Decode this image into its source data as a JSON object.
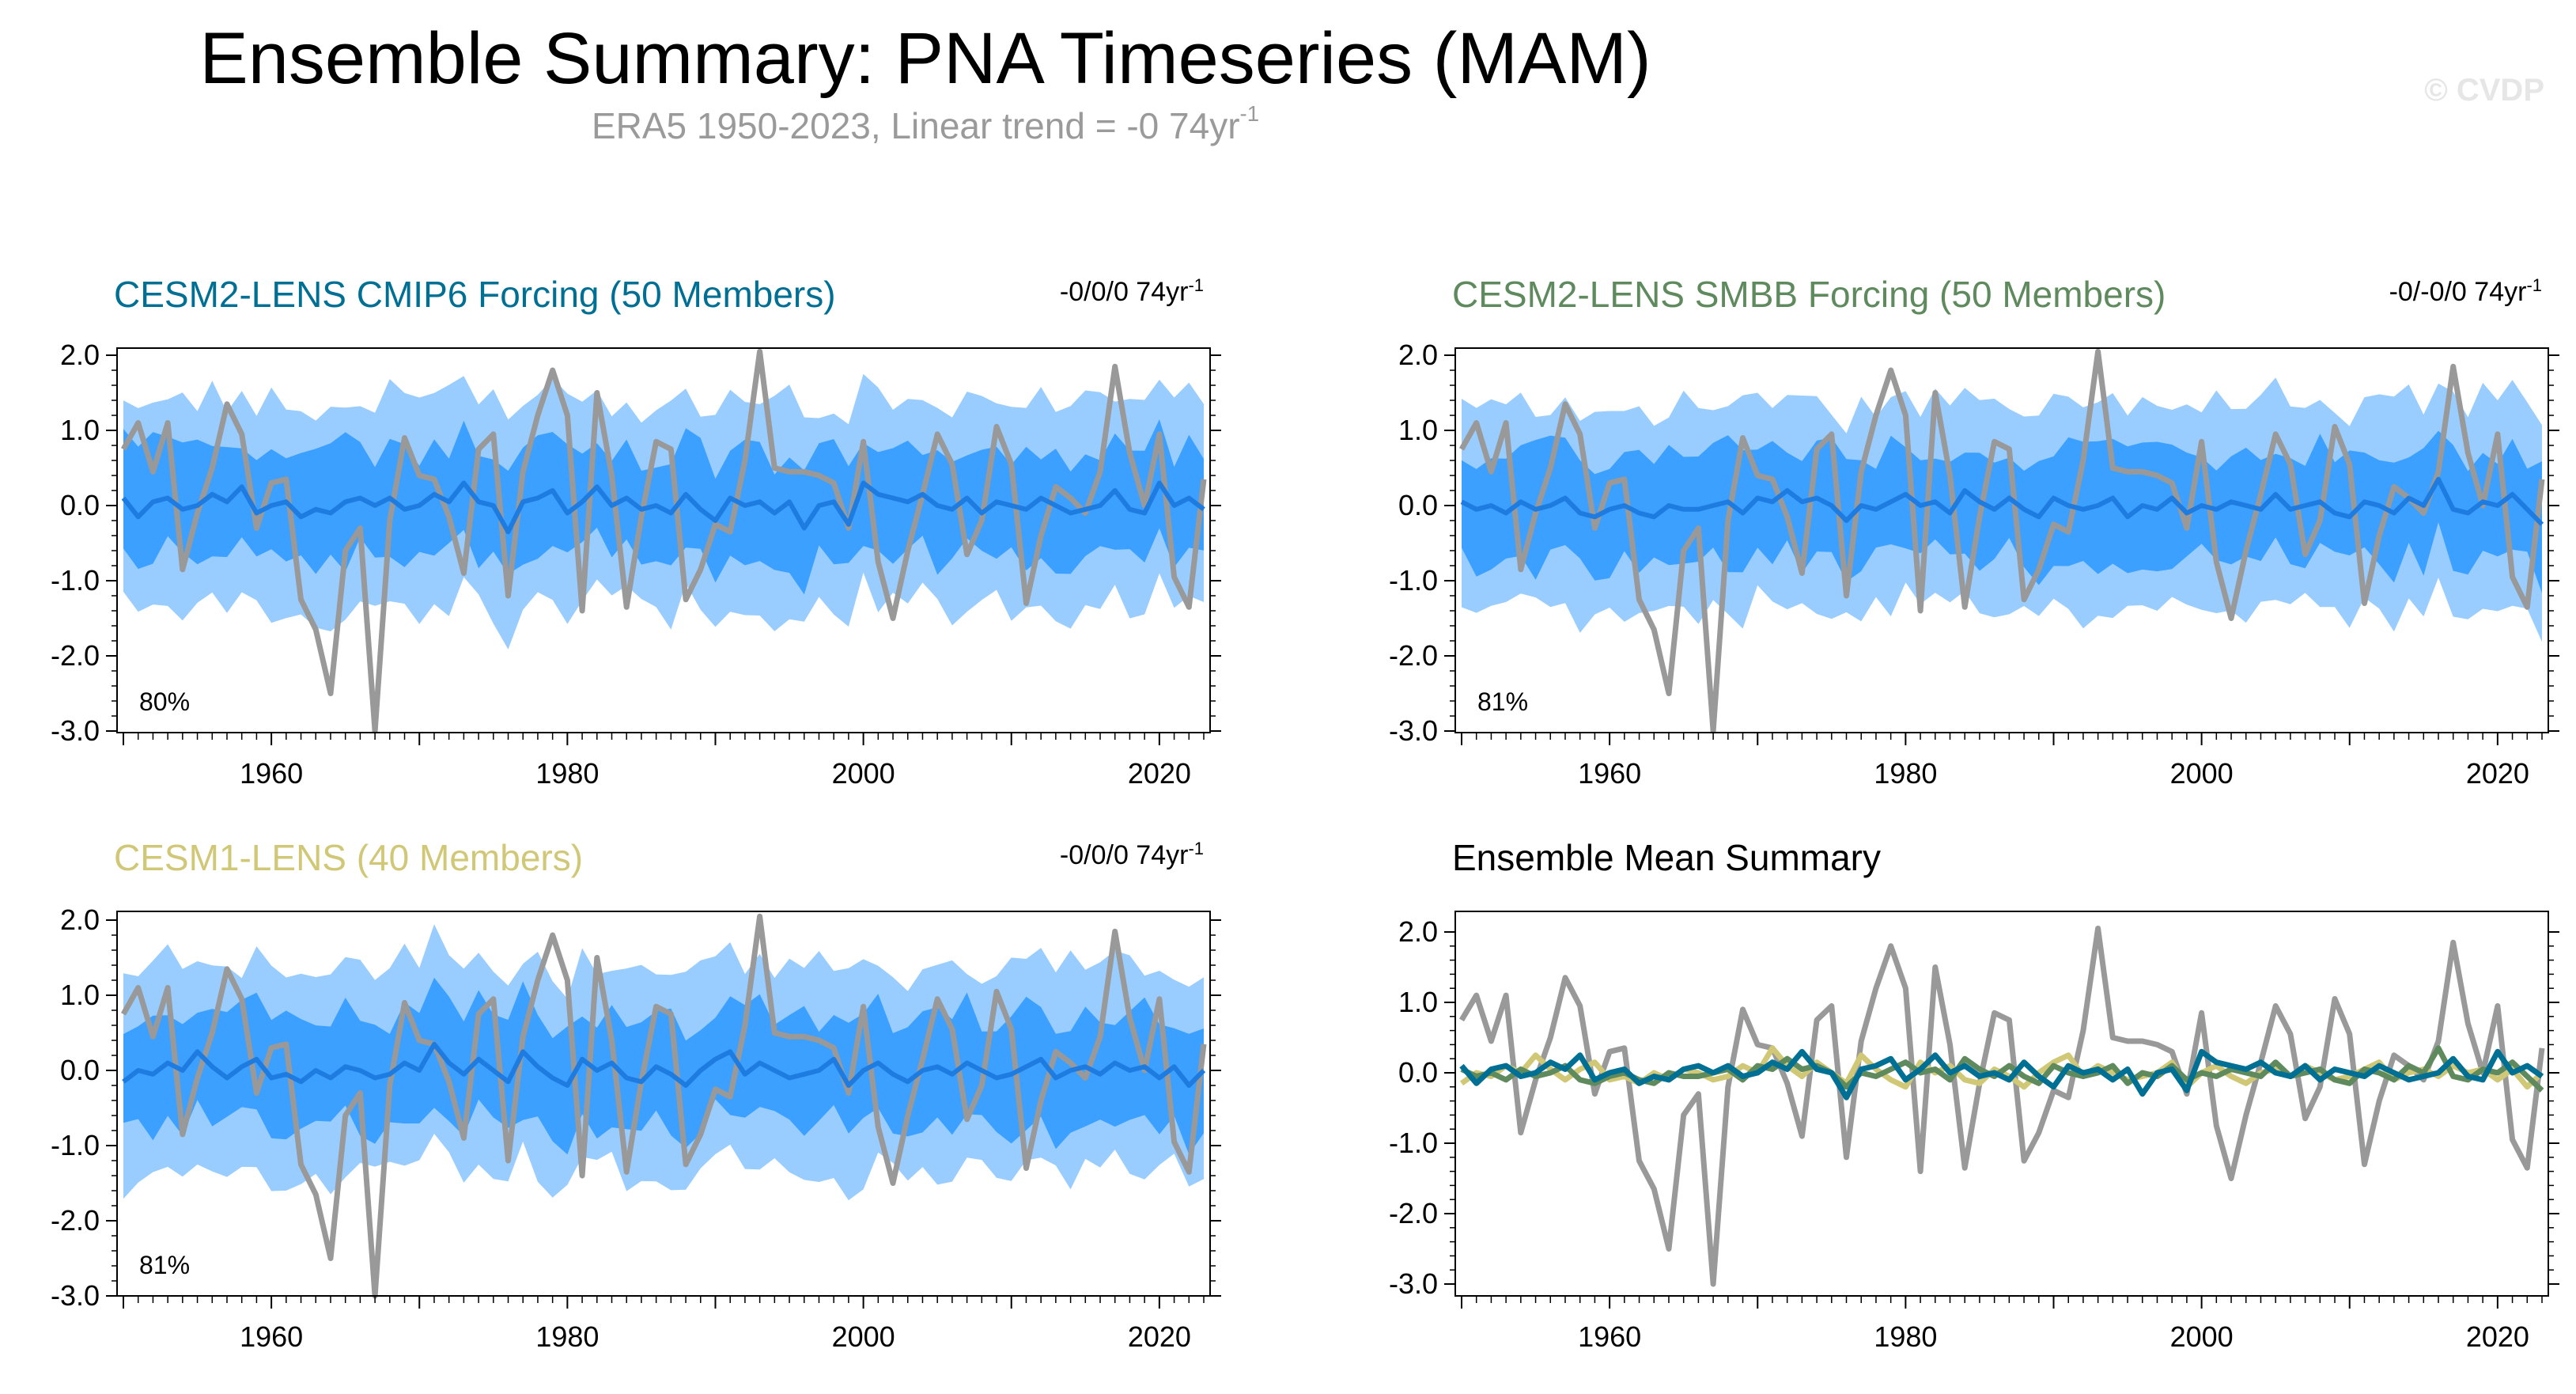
{
  "title": "Ensemble Summary: PNA Timeseries (MAM)",
  "subtitle_text": "ERA5 1950-2023, Linear trend = -0 74yr",
  "subtitle_sup": "-1",
  "credit": "© CVDP",
  "colors": {
    "obs": "#999999",
    "band_outer": "#99ccff",
    "band_inner": "#3ba0ff",
    "ens_mean": "#1e7be0",
    "cmip6": "#006f94",
    "smbb": "#5e8a5e",
    "cesm1": "#d0c877"
  },
  "chart_data": [
    {
      "type": "line",
      "title": "CESM2-LENS CMIP6 Forcing (50 Members)",
      "title_color": "#006f94",
      "trend_text": "-0/0/0 74yr",
      "trend_sup": "-1",
      "percent_label": "80%",
      "band_width": 1,
      "band_seed": 3,
      "xlim": [
        1950,
        2023
      ],
      "ylim": [
        -3.0,
        2.0
      ],
      "yticks": [
        "2.0",
        "1.0",
        "0.0",
        "-1.0",
        "-2.0",
        "-3.0"
      ],
      "xticks": [
        "1960",
        "1980",
        "2000",
        "2020"
      ],
      "series": [
        {
          "name": "ERA5",
          "color": "#999999",
          "width": 7,
          "values": [
            0.75,
            1.1,
            0.45,
            1.1,
            -0.85,
            -0.1,
            0.5,
            1.35,
            0.95,
            -0.3,
            0.3,
            0.35,
            -1.25,
            -1.65,
            -2.5,
            -0.6,
            -0.3,
            -3.0,
            -0.2,
            0.9,
            0.4,
            0.35,
            -0.15,
            -0.9,
            0.75,
            0.95,
            -1.2,
            0.45,
            1.2,
            1.8,
            1.2,
            -1.4,
            1.5,
            0.4,
            -1.35,
            -0.15,
            0.85,
            0.75,
            -1.25,
            -0.85,
            -0.25,
            -0.35,
            0.6,
            2.05,
            0.5,
            0.45,
            0.45,
            0.4,
            0.3,
            -0.3,
            0.85,
            -0.75,
            -1.5,
            -0.6,
            0.15,
            0.95,
            0.55,
            -0.65,
            -0.2,
            1.05,
            0.55,
            -1.3,
            -0.4,
            0.25,
            0.1,
            -0.1,
            0.45,
            1.85,
            0.7,
            0.0,
            0.95,
            -0.95,
            -1.35,
            0.35
          ]
        },
        {
          "name": "Ensemble mean",
          "color": "#1e7be0",
          "width": 6,
          "values": [
            0.1,
            -0.15,
            0.05,
            0.1,
            -0.05,
            0.0,
            0.15,
            0.05,
            0.25,
            -0.1,
            0.0,
            0.05,
            -0.15,
            -0.05,
            -0.1,
            0.05,
            0.1,
            0.0,
            0.1,
            -0.05,
            0.0,
            0.15,
            0.05,
            0.3,
            0.05,
            0.0,
            -0.35,
            0.05,
            0.1,
            0.2,
            -0.1,
            0.05,
            0.25,
            0.0,
            0.1,
            -0.05,
            0.0,
            -0.1,
            0.15,
            -0.05,
            -0.2,
            0.1,
            0.0,
            0.05,
            -0.1,
            0.05,
            -0.3,
            0.0,
            0.05,
            -0.25,
            0.3,
            0.15,
            0.1,
            0.05,
            0.15,
            0.0,
            -0.05,
            0.1,
            -0.1,
            0.05,
            0.0,
            -0.05,
            0.1,
            0.0,
            -0.1,
            -0.05,
            0.0,
            0.2,
            -0.05,
            -0.1,
            0.3,
            0.0,
            0.1,
            -0.05
          ]
        }
      ]
    },
    {
      "type": "line",
      "title": "CESM2-LENS SMBB Forcing (50 Members)",
      "title_color": "#5e8a5e",
      "trend_text": "-0/-0/0 74yr",
      "trend_sup": "-1",
      "percent_label": "81%",
      "band_width": 1,
      "band_seed": 7,
      "xlim": [
        1950,
        2023
      ],
      "ylim": [
        -3.0,
        2.0
      ],
      "yticks": [
        "2.0",
        "1.0",
        "0.0",
        "-1.0",
        "-2.0",
        "-3.0"
      ],
      "xticks": [
        "1960",
        "1980",
        "2000",
        "2020"
      ],
      "series": [
        {
          "name": "ERA5",
          "color": "#999999",
          "width": 7,
          "values": [
            0.75,
            1.1,
            0.45,
            1.1,
            -0.85,
            -0.1,
            0.5,
            1.35,
            0.95,
            -0.3,
            0.3,
            0.35,
            -1.25,
            -1.65,
            -2.5,
            -0.6,
            -0.3,
            -3.0,
            -0.2,
            0.9,
            0.4,
            0.35,
            -0.15,
            -0.9,
            0.75,
            0.95,
            -1.2,
            0.45,
            1.2,
            1.8,
            1.2,
            -1.4,
            1.5,
            0.4,
            -1.35,
            -0.15,
            0.85,
            0.75,
            -1.25,
            -0.85,
            -0.25,
            -0.35,
            0.6,
            2.05,
            0.5,
            0.45,
            0.45,
            0.4,
            0.3,
            -0.3,
            0.85,
            -0.75,
            -1.5,
            -0.6,
            0.15,
            0.95,
            0.55,
            -0.65,
            -0.2,
            1.05,
            0.55,
            -1.3,
            -0.4,
            0.25,
            0.1,
            -0.1,
            0.45,
            1.85,
            0.7,
            0.0,
            0.95,
            -0.95,
            -1.35,
            0.35
          ]
        },
        {
          "name": "Ensemble mean",
          "color": "#1e7be0",
          "width": 6,
          "values": [
            0.05,
            -0.05,
            0.0,
            -0.1,
            0.05,
            -0.05,
            0.0,
            0.1,
            -0.1,
            -0.15,
            -0.05,
            0.0,
            -0.1,
            -0.15,
            0.0,
            -0.05,
            -0.05,
            0.0,
            0.05,
            -0.1,
            0.1,
            0.05,
            0.2,
            0.05,
            0.1,
            0.0,
            -0.2,
            0.0,
            -0.05,
            0.05,
            0.15,
            0.0,
            0.05,
            -0.1,
            0.2,
            0.05,
            -0.05,
            0.1,
            -0.05,
            -0.15,
            0.1,
            0.0,
            -0.05,
            0.0,
            0.1,
            -0.15,
            0.0,
            -0.05,
            0.1,
            -0.1,
            0.0,
            -0.05,
            0.05,
            0.0,
            -0.05,
            0.15,
            -0.05,
            0.0,
            0.05,
            -0.1,
            -0.15,
            0.05,
            0.0,
            -0.1,
            0.1,
            0.0,
            0.35,
            -0.05,
            -0.1,
            0.05,
            0.0,
            0.15,
            -0.05,
            -0.25
          ]
        }
      ]
    },
    {
      "type": "line",
      "title": "CESM1-LENS (40 Members)",
      "title_color": "#d0c877",
      "trend_text": "-0/0/0 74yr",
      "trend_sup": "-1",
      "percent_label": "81%",
      "band_width": 1,
      "band_seed": 11,
      "xlim": [
        1950,
        2023
      ],
      "ylim": [
        -3.0,
        2.0
      ],
      "yticks": [
        "2.0",
        "1.0",
        "0.0",
        "-1.0",
        "-2.0",
        "-3.0"
      ],
      "xticks": [
        "1960",
        "1980",
        "2000",
        "2020"
      ],
      "series": [
        {
          "name": "ERA5",
          "color": "#999999",
          "width": 7,
          "values": [
            0.75,
            1.1,
            0.45,
            1.1,
            -0.85,
            -0.1,
            0.5,
            1.35,
            0.95,
            -0.3,
            0.3,
            0.35,
            -1.25,
            -1.65,
            -2.5,
            -0.6,
            -0.3,
            -3.0,
            -0.2,
            0.9,
            0.4,
            0.35,
            -0.15,
            -0.9,
            0.75,
            0.95,
            -1.2,
            0.45,
            1.2,
            1.8,
            1.2,
            -1.4,
            1.5,
            0.4,
            -1.35,
            -0.15,
            0.85,
            0.75,
            -1.25,
            -0.85,
            -0.25,
            -0.35,
            0.6,
            2.05,
            0.5,
            0.45,
            0.45,
            0.4,
            0.3,
            -0.3,
            0.85,
            -0.75,
            -1.5,
            -0.6,
            0.15,
            0.95,
            0.55,
            -0.65,
            -0.2,
            1.05,
            0.55,
            -1.3,
            -0.4,
            0.25,
            0.1,
            -0.1,
            0.45,
            1.85,
            0.7,
            0.0,
            0.95,
            -0.95,
            -1.35,
            0.35
          ]
        },
        {
          "name": "Ensemble mean",
          "color": "#1e7be0",
          "width": 6,
          "values": [
            -0.15,
            0.0,
            -0.05,
            0.1,
            0.0,
            0.25,
            0.05,
            -0.1,
            0.05,
            0.15,
            -0.1,
            -0.05,
            -0.15,
            0.0,
            -0.1,
            0.05,
            0.0,
            -0.1,
            -0.05,
            0.1,
            0.0,
            0.35,
            0.1,
            -0.05,
            0.15,
            0.0,
            -0.15,
            0.25,
            0.05,
            -0.1,
            -0.2,
            0.15,
            0.0,
            0.1,
            -0.1,
            -0.15,
            0.05,
            -0.05,
            -0.2,
            0.0,
            0.15,
            0.25,
            -0.05,
            0.1,
            0.0,
            -0.1,
            -0.05,
            0.0,
            0.15,
            -0.2,
            0.0,
            0.1,
            -0.05,
            -0.15,
            0.0,
            0.05,
            -0.05,
            0.1,
            0.0,
            -0.1,
            -0.05,
            0.05,
            0.15,
            -0.1,
            0.0,
            0.05,
            -0.05,
            0.1,
            0.0,
            0.05,
            -0.1,
            0.05,
            -0.2,
            0.0
          ]
        }
      ]
    },
    {
      "type": "line",
      "title": "Ensemble Mean Summary",
      "title_color": "#000000",
      "trend_text": "",
      "trend_sup": "",
      "percent_label": "",
      "band_width": 0,
      "xlim": [
        1950,
        2023
      ],
      "ylim": [
        -3.0,
        2.0
      ],
      "yticks": [
        "2.0",
        "1.0",
        "0.0",
        "-1.0",
        "-2.0",
        "-3.0"
      ],
      "xticks": [
        "1960",
        "1980",
        "2000",
        "2020"
      ],
      "series": [
        {
          "name": "ERA5",
          "color": "#999999",
          "width": 7,
          "values": [
            0.75,
            1.1,
            0.45,
            1.1,
            -0.85,
            -0.1,
            0.5,
            1.35,
            0.95,
            -0.3,
            0.3,
            0.35,
            -1.25,
            -1.65,
            -2.5,
            -0.6,
            -0.3,
            -3.0,
            -0.2,
            0.9,
            0.4,
            0.35,
            -0.15,
            -0.9,
            0.75,
            0.95,
            -1.2,
            0.45,
            1.2,
            1.8,
            1.2,
            -1.4,
            1.5,
            0.4,
            -1.35,
            -0.15,
            0.85,
            0.75,
            -1.25,
            -0.85,
            -0.25,
            -0.35,
            0.6,
            2.05,
            0.5,
            0.45,
            0.45,
            0.4,
            0.3,
            -0.3,
            0.85,
            -0.75,
            -1.5,
            -0.6,
            0.15,
            0.95,
            0.55,
            -0.65,
            -0.2,
            1.05,
            0.55,
            -1.3,
            -0.4,
            0.25,
            0.1,
            -0.1,
            0.45,
            1.85,
            0.7,
            0.0,
            0.95,
            -0.95,
            -1.35,
            0.35
          ]
        },
        {
          "name": "CESM1-LENS",
          "color": "#d0c877",
          "width": 7,
          "values": [
            -0.15,
            0.0,
            -0.05,
            0.1,
            0.0,
            0.25,
            0.05,
            -0.1,
            0.05,
            0.15,
            -0.1,
            -0.05,
            -0.15,
            0.0,
            -0.1,
            0.05,
            0.0,
            -0.1,
            -0.05,
            0.1,
            0.0,
            0.35,
            0.1,
            -0.05,
            0.15,
            0.0,
            -0.15,
            0.25,
            0.05,
            -0.1,
            -0.2,
            0.15,
            0.0,
            0.1,
            -0.1,
            -0.15,
            0.05,
            -0.05,
            -0.2,
            0.0,
            0.15,
            0.25,
            -0.05,
            0.1,
            0.0,
            -0.1,
            -0.05,
            0.0,
            0.15,
            -0.2,
            0.0,
            0.1,
            -0.05,
            -0.15,
            0.0,
            0.05,
            -0.05,
            0.1,
            0.0,
            -0.1,
            -0.05,
            0.05,
            0.15,
            -0.1,
            0.0,
            0.05,
            -0.05,
            0.1,
            0.0,
            0.05,
            -0.1,
            0.05,
            -0.2,
            0.0
          ]
        },
        {
          "name": "CESM2-LENS SMBB",
          "color": "#5e8a5e",
          "width": 7,
          "values": [
            0.05,
            -0.05,
            0.0,
            -0.1,
            0.05,
            -0.05,
            0.0,
            0.1,
            -0.1,
            -0.15,
            -0.05,
            0.0,
            -0.1,
            -0.15,
            0.0,
            -0.05,
            -0.05,
            0.0,
            0.05,
            -0.1,
            0.1,
            0.05,
            0.2,
            0.05,
            0.1,
            0.0,
            -0.2,
            0.0,
            -0.05,
            0.05,
            0.15,
            0.0,
            0.05,
            -0.1,
            0.2,
            0.05,
            -0.05,
            0.1,
            -0.05,
            -0.15,
            0.1,
            0.0,
            -0.05,
            0.0,
            0.1,
            -0.15,
            0.0,
            -0.05,
            0.1,
            -0.1,
            0.0,
            -0.05,
            0.05,
            0.0,
            -0.05,
            0.15,
            -0.05,
            0.0,
            0.05,
            -0.1,
            -0.15,
            0.05,
            0.0,
            -0.1,
            0.1,
            0.0,
            0.35,
            -0.05,
            -0.1,
            0.05,
            0.0,
            0.15,
            -0.05,
            -0.25
          ]
        },
        {
          "name": "CESM2-LENS CMIP6",
          "color": "#006f94",
          "width": 7,
          "values": [
            0.1,
            -0.15,
            0.05,
            0.1,
            -0.05,
            0.0,
            0.15,
            0.05,
            0.25,
            -0.1,
            0.0,
            0.05,
            -0.15,
            -0.05,
            -0.1,
            0.05,
            0.1,
            0.0,
            0.1,
            -0.05,
            0.0,
            0.15,
            0.05,
            0.3,
            0.05,
            0.0,
            -0.35,
            0.05,
            0.1,
            0.2,
            -0.1,
            0.05,
            0.25,
            0.0,
            0.1,
            -0.05,
            0.0,
            -0.1,
            0.15,
            -0.05,
            -0.2,
            0.1,
            0.0,
            0.05,
            -0.1,
            0.05,
            -0.3,
            0.0,
            0.05,
            -0.25,
            0.3,
            0.15,
            0.1,
            0.05,
            0.15,
            0.0,
            -0.05,
            0.1,
            -0.1,
            0.05,
            0.0,
            -0.05,
            0.1,
            0.0,
            -0.1,
            -0.05,
            0.0,
            0.2,
            -0.05,
            -0.1,
            0.3,
            0.0,
            0.1,
            -0.05
          ]
        }
      ]
    }
  ]
}
